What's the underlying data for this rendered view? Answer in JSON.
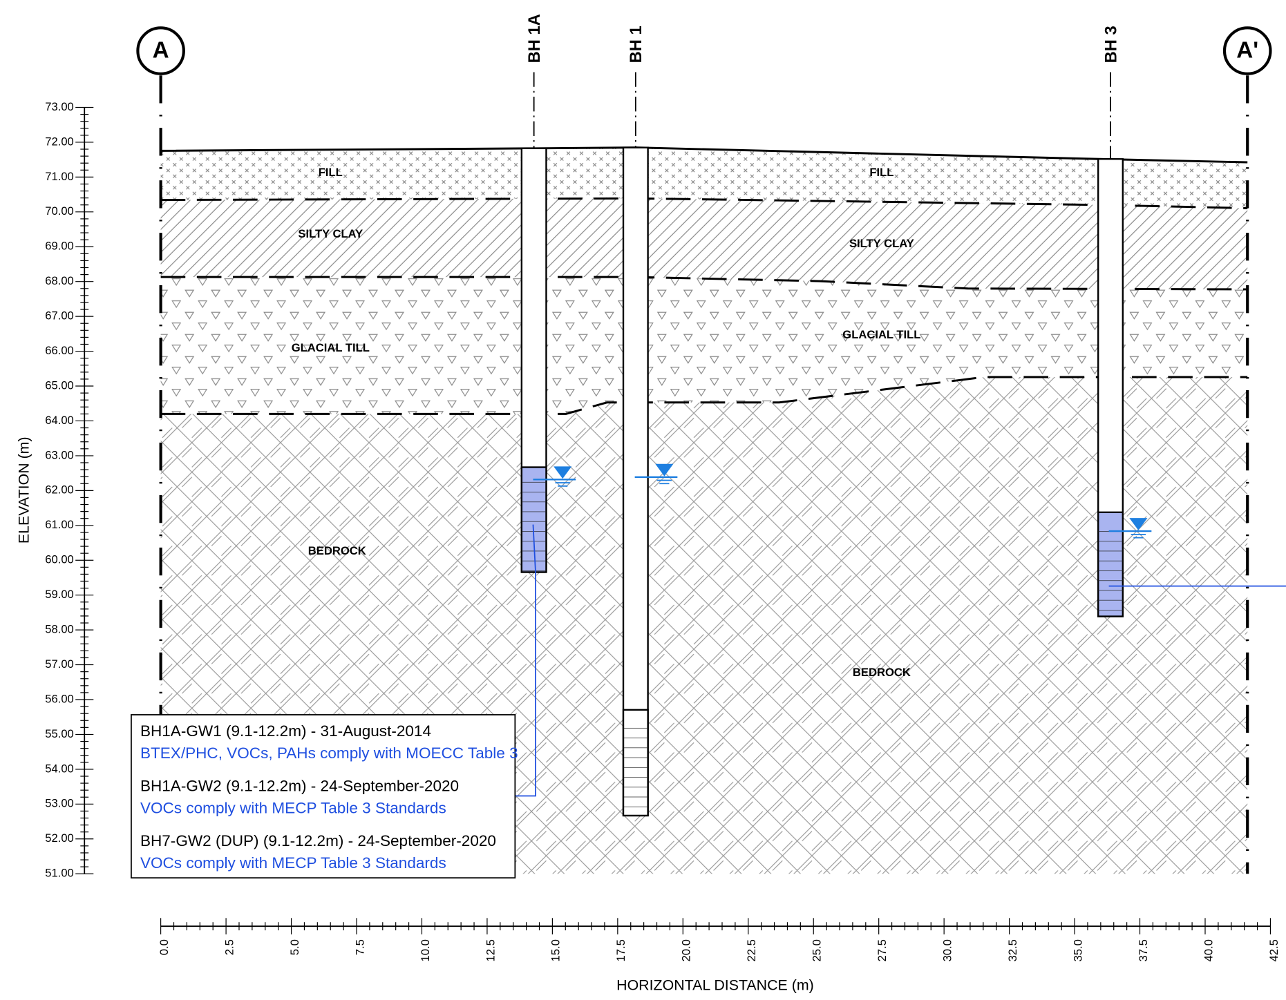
{
  "section_markers": {
    "start": "A",
    "end": "A'"
  },
  "boreholes": [
    {
      "label": "BH 1A"
    },
    {
      "label": "BH 1"
    },
    {
      "label": "BH 3"
    }
  ],
  "layers": [
    {
      "name": "FILL"
    },
    {
      "name": "SILTY CLAY"
    },
    {
      "name": "GLACIAL TILL"
    },
    {
      "name": "BEDROCK"
    }
  ],
  "y_axis": {
    "label": "ELEVATION (m)",
    "ticks": [
      "73.00",
      "72.00",
      "71.00",
      "70.00",
      "69.00",
      "68.00",
      "67.00",
      "66.00",
      "65.00",
      "64.00",
      "63.00",
      "62.00",
      "61.00",
      "60.00",
      "59.00",
      "58.00",
      "57.00",
      "56.00",
      "55.00",
      "54.00",
      "53.00",
      "52.00",
      "51.00"
    ]
  },
  "x_axis": {
    "label": "HORIZONTAL DISTANCE (m)",
    "ticks": [
      "0.0",
      "2.5",
      "5.0",
      "7.5",
      "10.0",
      "12.5",
      "15.0",
      "17.5",
      "20.0",
      "22.5",
      "25.0",
      "27.5",
      "30.0",
      "32.5",
      "35.0",
      "37.5",
      "40.0",
      "42.5"
    ]
  },
  "notes": [
    {
      "sample": "BH1A-GW1 (9.1-12.2m) - 31-August-2014",
      "result": "BTEX/PHC, VOCs, PAHs comply with MOECC Table 3"
    },
    {
      "sample": "BH1A-GW2 (9.1-12.2m) - 24-September-2020",
      "result": "VOCs comply with MECP Table 3 Standards"
    },
    {
      "sample": "BH7-GW2 (DUP) (9.1-12.2m) - 24-September-2020",
      "result": "VOCs comply with MECP Table 3 Standards"
    }
  ]
}
